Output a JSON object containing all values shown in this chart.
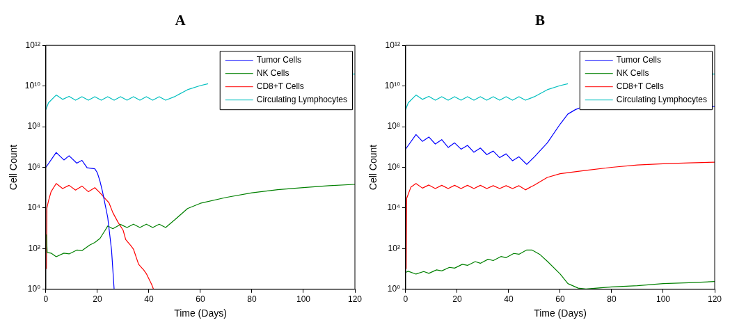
{
  "chart_data": [
    {
      "type": "line",
      "title": "A",
      "xlabel": "Time (Days)",
      "ylabel": "Cell Count",
      "log": "y",
      "grid": false,
      "legend": "top right",
      "line_style": "solid",
      "marker": "none",
      "xlim": [
        0,
        120
      ],
      "xticks": [
        0,
        20,
        40,
        60,
        80,
        100,
        120
      ],
      "ylim": [
        1,
        1000000000000.0
      ],
      "yticks": [
        {
          "value": 1,
          "label": "10⁰"
        },
        {
          "value": 100,
          "label": "10²"
        },
        {
          "value": 10000,
          "label": "10⁴"
        },
        {
          "value": 1000000.0,
          "label": "10⁶"
        },
        {
          "value": 100000000.0,
          "label": "10⁸"
        },
        {
          "value": 10000000000.0,
          "label": "10¹⁰"
        },
        {
          "value": 1000000000000.0,
          "label": "10¹²"
        }
      ],
      "series": [
        {
          "name": "Tumor Cells",
          "color": "#0000ff",
          "x": [
            0,
            4,
            7,
            9,
            12,
            14,
            16,
            19,
            20,
            21,
            22,
            24,
            25.5,
            26.5
          ],
          "values": [
            1000000.0,
            5400000.0,
            2300000.0,
            3700000.0,
            1600000.0,
            2200000.0,
            950000.0,
            850000.0,
            530000.0,
            210000.0,
            63000.0,
            3500,
            83,
            1
          ]
        },
        {
          "name": "NK Cells",
          "color": "#008000",
          "x": [
            0.2,
            0.5,
            2,
            4,
            7,
            9,
            12,
            14,
            17,
            19,
            21,
            23,
            24,
            26,
            29,
            31.5,
            34,
            36.5,
            39,
            41.5,
            44,
            46.5,
            50,
            55,
            60,
            70,
            80,
            90,
            100,
            110,
            120
          ],
          "values": [
            500,
            65,
            60,
            40,
            60,
            55,
            85,
            80,
            150,
            200,
            316,
            800,
            1300,
            950,
            1550,
            1100,
            1600,
            1100,
            1600,
            1100,
            1600,
            1100,
            2600,
            9400,
            17000,
            33000,
            56000,
            79000,
            100000,
            126000,
            145000
          ]
        },
        {
          "name": "CD8+T Cells",
          "color": "#ff0000",
          "x": [
            0.2,
            0.4,
            1,
            2,
            4,
            6.5,
            9,
            11.5,
            14,
            16.5,
            19,
            21,
            23,
            24.5,
            26,
            28,
            30,
            31,
            33,
            34,
            36,
            38,
            39,
            41,
            41.8
          ],
          "values": [
            10,
            10000,
            22000,
            63000,
            160000,
            90000,
            130000,
            76000,
            120000,
            63000,
            100000,
            56000,
            29000,
            18000,
            5900,
            2000,
            800,
            280,
            140,
            95,
            17,
            8.8,
            5.9,
            1.8,
            1
          ]
        },
        {
          "name": "Circulating Lymphocytes",
          "color": "#00bfbf",
          "x": [
            0,
            1,
            4,
            6.5,
            9,
            11.5,
            14,
            16.5,
            19,
            21.5,
            24,
            26.5,
            29,
            31.5,
            34,
            36.5,
            39,
            41.5,
            44,
            46.5,
            50,
            55,
            60,
            63,
            90,
            118.6,
            120
          ],
          "values": [
            690000000.0,
            1500000000.0,
            3600000000.0,
            2200000000.0,
            3100000000.0,
            2000000000.0,
            3000000000.0,
            2000000000.0,
            3000000000.0,
            2000000000.0,
            3000000000.0,
            2000000000.0,
            3000000000.0,
            2000000000.0,
            3000000000.0,
            2000000000.0,
            3000000000.0,
            2000000000.0,
            3000000000.0,
            2000000000.0,
            3000000000.0,
            6600000000.0,
            10500000000.0,
            13000000000.0,
            null,
            39000000000.0,
            39000000000.0
          ]
        }
      ]
    },
    {
      "type": "line",
      "title": "B",
      "xlabel": "Time (Days)",
      "ylabel": "Cell Count",
      "log": "y",
      "grid": false,
      "legend": "top right",
      "line_style": "solid",
      "marker": "none",
      "xlim": [
        0,
        120
      ],
      "xticks": [
        0,
        20,
        40,
        60,
        80,
        100,
        120
      ],
      "ylim": [
        1,
        1000000000000.0
      ],
      "yticks": [
        {
          "value": 1,
          "label": "10⁰"
        },
        {
          "value": 100,
          "label": "10²"
        },
        {
          "value": 10000,
          "label": "10⁴"
        },
        {
          "value": 1000000.0,
          "label": "10⁶"
        },
        {
          "value": 100000000.0,
          "label": "10⁸"
        },
        {
          "value": 10000000000.0,
          "label": "10¹⁰"
        },
        {
          "value": 1000000000000.0,
          "label": "10¹²"
        }
      ],
      "series": [
        {
          "name": "Tumor Cells",
          "color": "#0000ff",
          "x": [
            0,
            4,
            6.5,
            9,
            11.5,
            14,
            16.5,
            19,
            21.5,
            24,
            26.5,
            29,
            31.5,
            34,
            36.5,
            39,
            41.5,
            44,
            47,
            50,
            55,
            60,
            63,
            66,
            68,
            90,
            118.6,
            120
          ],
          "values": [
            7900000.0,
            41000000.0,
            19000000.0,
            31000000.0,
            14000000.0,
            23000000.0,
            9500000.0,
            16000000.0,
            7800000.0,
            12000000.0,
            5500000.0,
            8900000.0,
            4200000.0,
            6300000.0,
            3000000.0,
            4600000.0,
            2100000.0,
            3300000.0,
            1400000.0,
            3300000.0,
            16000000.0,
            135000000.0,
            420000000.0,
            700000000.0,
            870000000.0,
            null,
            1000000000.0,
            1000000000.0
          ]
        },
        {
          "name": "NK Cells",
          "color": "#008000",
          "x": [
            0,
            1,
            4,
            7,
            9,
            12,
            14,
            17,
            19,
            22,
            24,
            27,
            29,
            32,
            34,
            37,
            39,
            42,
            44,
            47,
            49,
            52,
            55,
            60,
            63,
            67,
            70,
            80,
            90,
            100,
            110,
            120
          ],
          "values": [
            6.8,
            7.7,
            5.6,
            7.5,
            6.1,
            9,
            8,
            12,
            11,
            17,
            15,
            23,
            19,
            30,
            26,
            41,
            36,
            58,
            53,
            86,
            86,
            53,
            24,
            5.6,
            1.9,
            1.14,
            1.03,
            1.3,
            1.5,
            1.9,
            2.1,
            2.4
          ]
        },
        {
          "name": "CD8+T Cells",
          "color": "#ff0000",
          "x": [
            0.2,
            0.4,
            2,
            4,
            6.5,
            9,
            11.5,
            14,
            16.5,
            19,
            21.5,
            24,
            26.5,
            29,
            31.5,
            34,
            36.5,
            39,
            41.5,
            44,
            46.5,
            50,
            55,
            60,
            70,
            80,
            90,
            100,
            110,
            120
          ],
          "values": [
            10,
            30000,
            105000,
            160000,
            95000,
            135000,
            90000,
            130000,
            90000,
            130000,
            90000,
            130000,
            90000,
            130000,
            90000,
            125000,
            90000,
            125000,
            90000,
            125000,
            78000,
            135000,
            320000,
            490000,
            710000,
            1000000.0,
            1300000.0,
            1500000.0,
            1650000.0,
            1800000.0
          ]
        },
        {
          "name": "Circulating Lymphocytes",
          "color": "#00bfbf",
          "x": [
            0,
            1,
            4,
            6.5,
            9,
            11.5,
            14,
            16.5,
            19,
            21.5,
            24,
            26.5,
            29,
            31.5,
            34,
            36.5,
            39,
            41.5,
            44,
            46.5,
            50,
            55,
            60,
            63,
            90,
            118.6,
            120
          ],
          "values": [
            690000000.0,
            1500000000.0,
            3600000000.0,
            2200000000.0,
            3100000000.0,
            2000000000.0,
            3000000000.0,
            2000000000.0,
            3000000000.0,
            2000000000.0,
            3000000000.0,
            2000000000.0,
            3000000000.0,
            2000000000.0,
            3000000000.0,
            2000000000.0,
            3000000000.0,
            2000000000.0,
            3000000000.0,
            2000000000.0,
            3000000000.0,
            6600000000.0,
            10500000000.0,
            13000000000.0,
            null,
            39000000000.0,
            39000000000.0
          ]
        }
      ]
    }
  ]
}
